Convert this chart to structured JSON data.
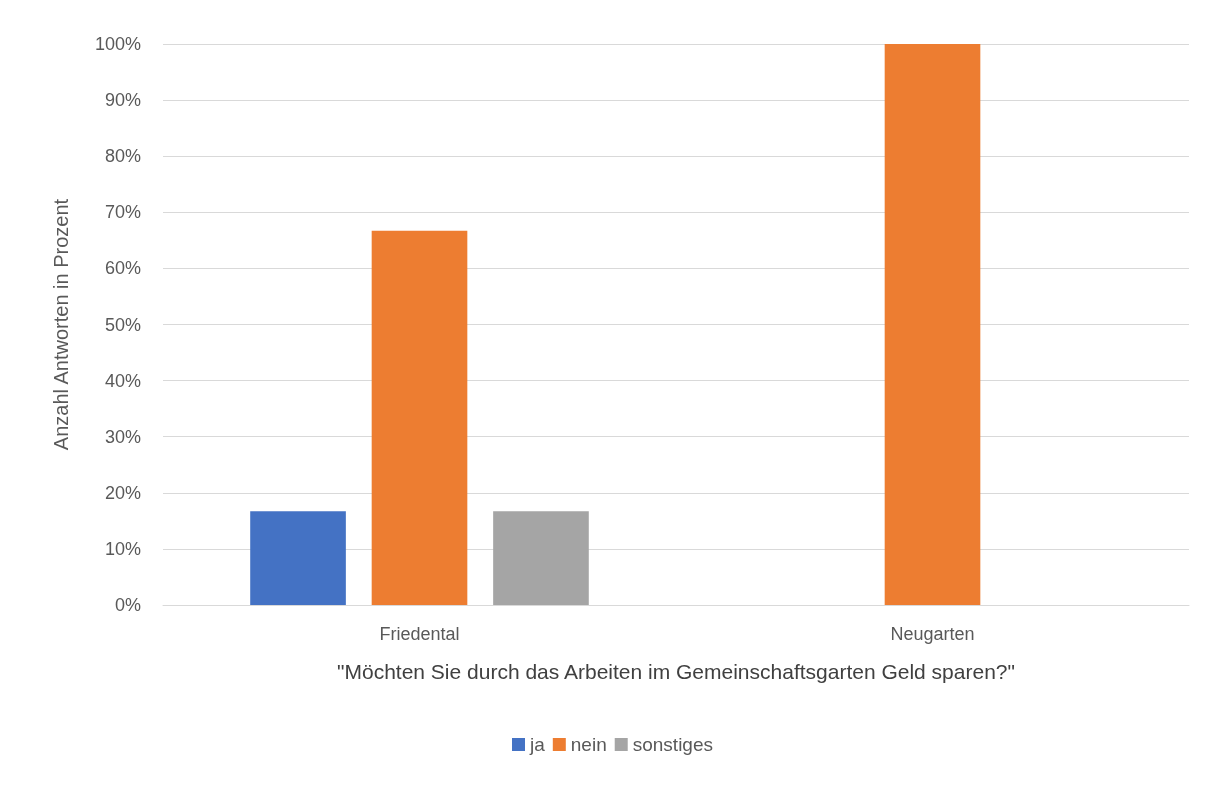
{
  "chart_data": {
    "type": "bar",
    "xlabel": "\"Möchten Sie durch das Arbeiten im Gemeinschaftsgarten Geld sparen?\"",
    "ylabel": "Anzahl Antworten in Prozent",
    "categories": [
      "Friedental",
      "Neugarten"
    ],
    "series": [
      {
        "name": "ja",
        "color": "#4472c4",
        "values": [
          16.7,
          0
        ]
      },
      {
        "name": "nein",
        "color": "#ed7d31",
        "values": [
          66.7,
          100
        ]
      },
      {
        "name": "sonstiges",
        "color": "#a5a5a5",
        "values": [
          16.7,
          0
        ]
      }
    ],
    "ylim": [
      0,
      100
    ],
    "yticks": [
      {
        "value": 0,
        "label": "0%"
      },
      {
        "value": 10,
        "label": "10%"
      },
      {
        "value": 20,
        "label": "20%"
      },
      {
        "value": 30,
        "label": "30%"
      },
      {
        "value": 40,
        "label": "40%"
      },
      {
        "value": 50,
        "label": "50%"
      },
      {
        "value": 60,
        "label": "60%"
      },
      {
        "value": 70,
        "label": "70%"
      },
      {
        "value": 80,
        "label": "80%"
      },
      {
        "value": 90,
        "label": "90%"
      },
      {
        "value": 100,
        "label": "100%"
      }
    ],
    "grid": "y",
    "legend": "bottom"
  }
}
